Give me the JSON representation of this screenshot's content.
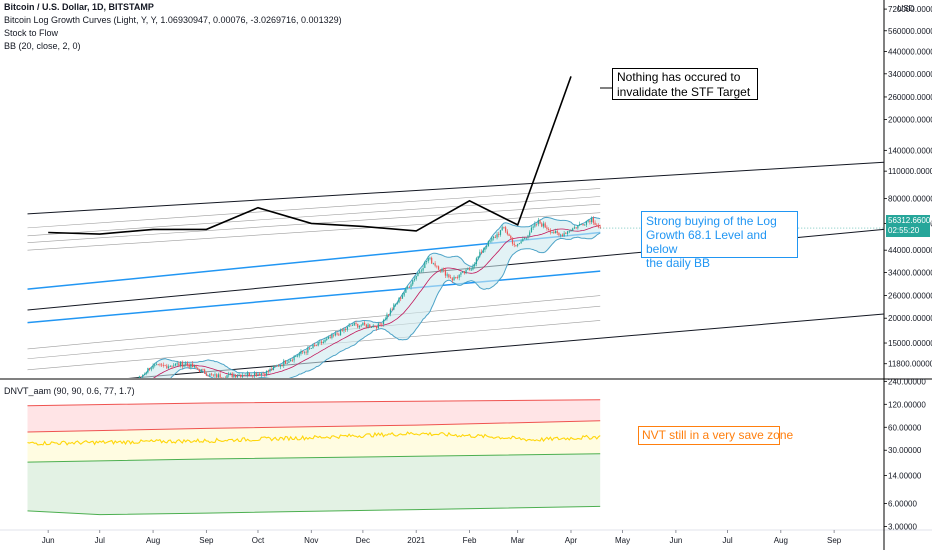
{
  "legend": {
    "title": "Bitcoin / U.S. Dollar, 1D, BITSTAMP",
    "line2": "Bitcoin Log Growth Curves (Light, Y, Y, 1.06930947, 0.00076, -3.0269716, 0.001329)",
    "line3": "Stock to Flow",
    "line4": "BB (20, close, 2, 0)",
    "lower": "DNVT_aam (90, 90, 0.6, 77, 1.7)"
  },
  "notes": {
    "stf": "Nothing has occured to\ninvalidate the STF Target",
    "buy": "Strong buying of the  Log\nGrowth 68.1 Level and below\nthe daily BB",
    "nvt": "NVT still in a very save zone"
  },
  "price_tag": {
    "price": "56312.66000",
    "countdown": "02:55:20"
  },
  "colors": {
    "up": "#26a69a",
    "down": "#ef5350",
    "blue": "#2196f3",
    "dark": "#131722",
    "grey": "#9e9e9e",
    "bb": "#4da3c7",
    "bbfill": "#cfe9ee",
    "red": "#ef5350",
    "yellow": "#ffd60a",
    "green": "#4caf50"
  },
  "chart_data": [
    {
      "type": "candlestick",
      "title": "Bitcoin / U.S. Dollar, 1D, BITSTAMP",
      "y_scale": "log",
      "ylim": [
        10000,
        720000
      ],
      "y_ticks": [
        "720000.00000",
        "560000.00000",
        "440000.00000",
        "340000.00000",
        "260000.00000",
        "200000.00000",
        "140000.00000",
        "110000.00000",
        "80000.00000",
        "60000.00000",
        "44000.00000",
        "34000.00000",
        "26000.00000",
        "20000.00000",
        "15000.00000",
        "11800.00000"
      ],
      "y_tick_values": [
        720000,
        560000,
        440000,
        340000,
        260000,
        200000,
        140000,
        110000,
        80000,
        60000,
        44000,
        34000,
        26000,
        20000,
        15000,
        11800
      ],
      "currency_label": "USD",
      "x_labels": [
        "Jun",
        "Jul",
        "Aug",
        "Sep",
        "Oct",
        "Nov",
        "Dec",
        "2021",
        "Feb",
        "Mar",
        "Apr",
        "May",
        "Jun",
        "Jul",
        "Aug",
        "Sep"
      ],
      "x_label_dates": [
        "2020-06-01",
        "2020-07-01",
        "2020-08-01",
        "2020-09-01",
        "2020-10-01",
        "2020-11-01",
        "2020-12-01",
        "2021-01-01",
        "2021-02-01",
        "2021-03-01",
        "2021-04-01",
        "2021-05-01",
        "2021-06-01",
        "2021-07-01",
        "2021-08-01",
        "2021-09-01"
      ],
      "last_date": "2021-04-18",
      "price_keyframes": [
        [
          "2020-05-20",
          9500
        ],
        [
          "2020-06-15",
          9400
        ],
        [
          "2020-07-20",
          9200
        ],
        [
          "2020-07-30",
          11300
        ],
        [
          "2020-08-20",
          11800
        ],
        [
          "2020-09-05",
          10200
        ],
        [
          "2020-10-05",
          10600
        ],
        [
          "2020-10-25",
          13200
        ],
        [
          "2020-11-10",
          15500
        ],
        [
          "2020-11-25",
          18500
        ],
        [
          "2020-12-10",
          18300
        ],
        [
          "2020-12-20",
          23500
        ],
        [
          "2021-01-08",
          40000
        ],
        [
          "2021-01-22",
          31500
        ],
        [
          "2021-02-01",
          35000
        ],
        [
          "2021-02-10",
          46000
        ],
        [
          "2021-02-21",
          57000
        ],
        [
          "2021-02-28",
          45500
        ],
        [
          "2021-03-13",
          61000
        ],
        [
          "2021-03-25",
          52000
        ],
        [
          "2021-04-13",
          63500
        ],
        [
          "2021-04-18",
          56312
        ]
      ],
      "stock_to_flow": [
        [
          "2020-06-01",
          54000
        ],
        [
          "2020-07-01",
          53000
        ],
        [
          "2020-08-01",
          56000
        ],
        [
          "2020-09-01",
          56000
        ],
        [
          "2020-10-01",
          72000
        ],
        [
          "2020-11-01",
          60000
        ],
        [
          "2020-12-01",
          58000
        ],
        [
          "2021-01-01",
          55000
        ],
        [
          "2021-02-01",
          78000
        ],
        [
          "2021-03-01",
          59000
        ],
        [
          "2021-04-01",
          330000
        ]
      ],
      "log_growth_lines": [
        {
          "color": "#131722",
          "start": [
            "2020-05-20",
            67000
          ],
          "end": [
            "2021-09-30",
            122000
          ]
        },
        {
          "color": "#9e9e9e",
          "start": [
            "2020-05-20",
            57000
          ],
          "end": [
            "2021-04-18",
            90000
          ]
        },
        {
          "color": "#9e9e9e",
          "start": [
            "2020-05-20",
            52000
          ],
          "end": [
            "2021-04-18",
            82000
          ]
        },
        {
          "color": "#9e9e9e",
          "start": [
            "2020-05-20",
            48000
          ],
          "end": [
            "2021-04-18",
            75000
          ]
        },
        {
          "color": "#9e9e9e",
          "start": [
            "2020-05-20",
            44000
          ],
          "end": [
            "2021-04-18",
            68000
          ]
        },
        {
          "color": "#2196f3",
          "start": [
            "2020-05-20",
            28000
          ],
          "end": [
            "2021-04-18",
            54000
          ]
        },
        {
          "color": "#131722",
          "start": [
            "2020-05-20",
            22000
          ],
          "end": [
            "2021-09-30",
            56000
          ]
        },
        {
          "color": "#2196f3",
          "start": [
            "2020-05-20",
            19000
          ],
          "end": [
            "2021-04-18",
            34500
          ]
        },
        {
          "color": "#9e9e9e",
          "start": [
            "2020-05-20",
            14000
          ],
          "end": [
            "2021-04-18",
            26000
          ]
        },
        {
          "color": "#9e9e9e",
          "start": [
            "2020-05-20",
            12500
          ],
          "end": [
            "2021-04-18",
            23000
          ]
        },
        {
          "color": "#9e9e9e",
          "start": [
            "2020-05-20",
            11000
          ],
          "end": [
            "2021-04-18",
            19500
          ]
        },
        {
          "color": "#131722",
          "start": [
            "2020-05-20",
            9000
          ],
          "end": [
            "2021-09-30",
            21000
          ]
        }
      ]
    },
    {
      "type": "line",
      "title": "DNVT_aam (90, 90, 0.6, 77, 1.7)",
      "y_scale": "log",
      "ylim": [
        2.7,
        240
      ],
      "y_ticks": [
        "240.00000",
        "120.00000",
        "60.00000",
        "30.00000",
        "14.00000",
        "6.00000",
        "3.00000"
      ],
      "y_tick_values": [
        240,
        120,
        60,
        30,
        14,
        6,
        3
      ],
      "series": [
        {
          "color": "#ef5350",
          "points": [
            [
              "2020-05-20",
              115
            ],
            [
              "2020-09-01",
              125
            ],
            [
              "2021-01-01",
              132
            ],
            [
              "2021-04-18",
              138
            ]
          ]
        },
        {
          "color": "#ef5350",
          "points": [
            [
              "2020-05-20",
              52
            ],
            [
              "2020-09-01",
              58
            ],
            [
              "2021-01-01",
              64
            ],
            [
              "2021-04-18",
              73
            ]
          ]
        },
        {
          "color": "#ffd60a",
          "points": [
            [
              "2020-05-20",
              37
            ],
            [
              "2020-07-01",
              38
            ],
            [
              "2020-09-01",
              40
            ],
            [
              "2020-11-01",
              44
            ],
            [
              "2021-01-01",
              50
            ],
            [
              "2021-02-15",
              45
            ],
            [
              "2021-03-10",
              41
            ],
            [
              "2021-04-18",
              45
            ]
          ]
        },
        {
          "color": "#4caf50",
          "points": [
            [
              "2020-05-20",
              21
            ],
            [
              "2020-09-01",
              23
            ],
            [
              "2021-01-01",
              25
            ],
            [
              "2021-04-18",
              27
            ]
          ]
        },
        {
          "color": "#4caf50",
          "points": [
            [
              "2020-05-20",
              4.8
            ],
            [
              "2020-07-01",
              4.3
            ],
            [
              "2020-09-01",
              4.5
            ],
            [
              "2021-01-01",
              5.0
            ],
            [
              "2021-04-18",
              5.5
            ]
          ]
        }
      ]
    }
  ]
}
